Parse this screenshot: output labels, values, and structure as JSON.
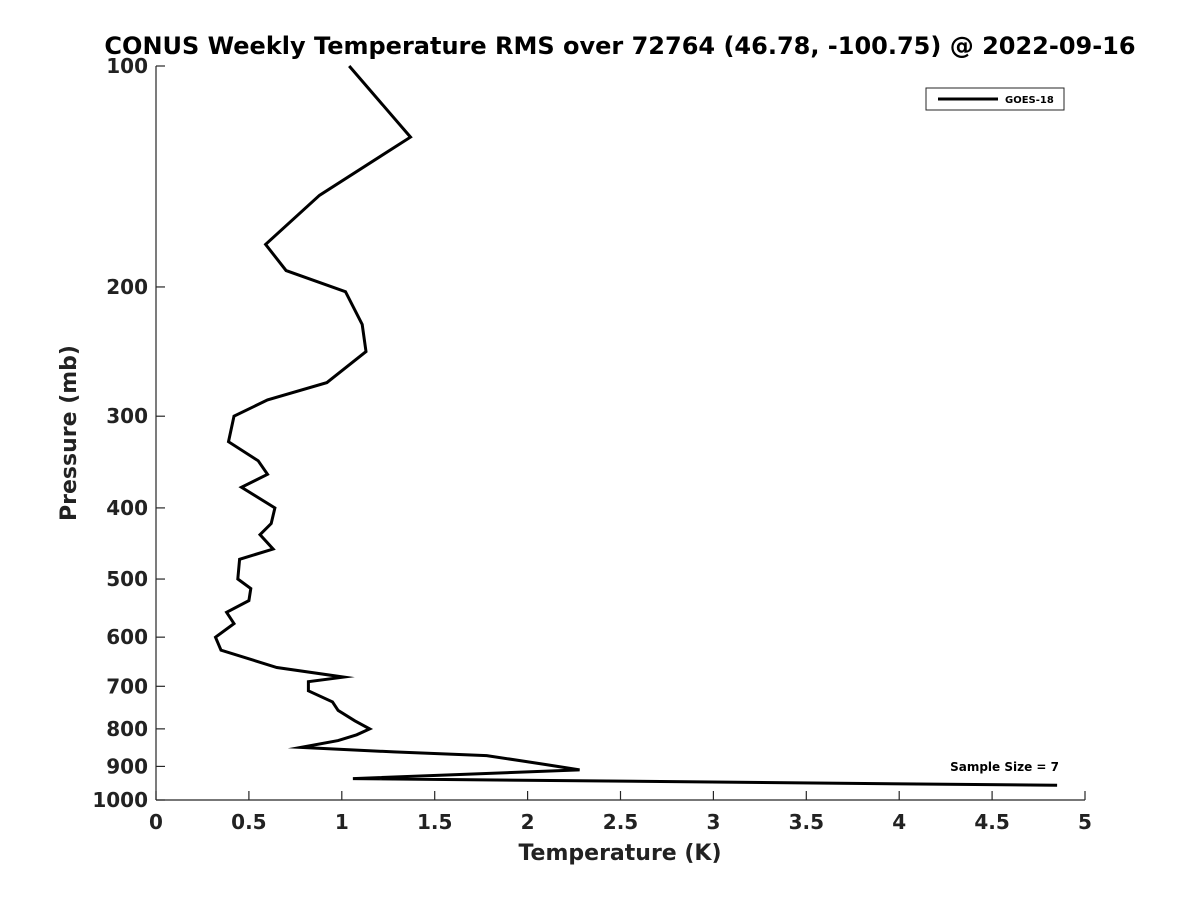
{
  "chart_data": {
    "type": "line",
    "title": "CONUS Weekly Temperature RMS over 72764 (46.78, -100.75) @ 2022-09-16",
    "xlabel": "Temperature (K)",
    "ylabel": "Pressure (mb)",
    "xlim": [
      0,
      5
    ],
    "ylim": [
      100,
      1000
    ],
    "y_scale": "log",
    "y_reversed": true,
    "grid": false,
    "legend_position": "top-right",
    "x_ticks": [
      "0",
      "0.5",
      "1",
      "1.5",
      "2",
      "2.5",
      "3",
      "3.5",
      "4",
      "4.5",
      "5"
    ],
    "y_ticks": [
      "100",
      "200",
      "300",
      "400",
      "500",
      "600",
      "700",
      "800",
      "900",
      "1000"
    ],
    "annotation": "Sample Size = 7",
    "series": [
      {
        "name": "GOES-18",
        "color": "#000000",
        "points": [
          [
            1.04,
            100
          ],
          [
            1.37,
            125
          ],
          [
            0.88,
            150
          ],
          [
            0.59,
            175
          ],
          [
            0.7,
            190
          ],
          [
            1.02,
            203
          ],
          [
            1.11,
            225
          ],
          [
            1.13,
            245
          ],
          [
            0.92,
            270
          ],
          [
            0.6,
            285
          ],
          [
            0.42,
            300
          ],
          [
            0.39,
            325
          ],
          [
            0.55,
            345
          ],
          [
            0.6,
            360
          ],
          [
            0.46,
            375
          ],
          [
            0.64,
            400
          ],
          [
            0.62,
            420
          ],
          [
            0.56,
            435
          ],
          [
            0.63,
            455
          ],
          [
            0.45,
            470
          ],
          [
            0.44,
            500
          ],
          [
            0.51,
            515
          ],
          [
            0.5,
            535
          ],
          [
            0.38,
            555
          ],
          [
            0.42,
            575
          ],
          [
            0.32,
            600
          ],
          [
            0.35,
            625
          ],
          [
            0.65,
            660
          ],
          [
            1.01,
            680
          ],
          [
            0.82,
            690
          ],
          [
            0.82,
            710
          ],
          [
            0.95,
            735
          ],
          [
            0.98,
            755
          ],
          [
            1.07,
            780
          ],
          [
            1.15,
            800
          ],
          [
            1.08,
            815
          ],
          [
            0.98,
            830
          ],
          [
            0.78,
            848
          ],
          [
            1.28,
            860
          ],
          [
            1.78,
            870
          ],
          [
            2.1,
            895
          ],
          [
            2.28,
            910
          ],
          [
            1.06,
            935
          ],
          [
            4.85,
            955
          ]
        ]
      }
    ]
  }
}
